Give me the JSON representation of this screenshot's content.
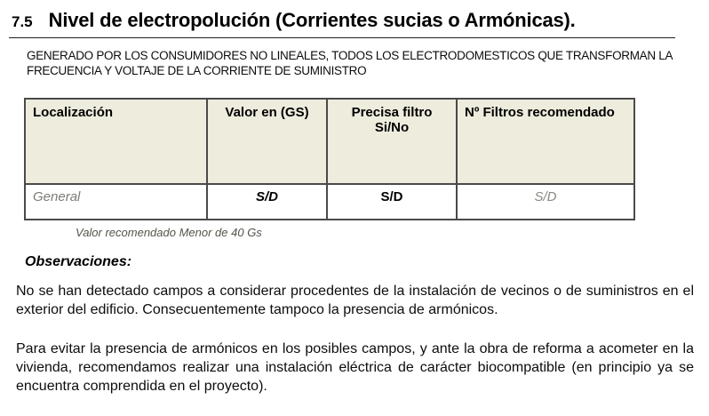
{
  "page": {
    "section_number": "7.5",
    "title": "Nivel de electropolución (Corrientes sucias o Armónicas).",
    "subtitle_line1": "GENERADO POR LOS CONSUMIDORES NO LINEALES, TODOS LOS ELECTRODOMESTICOS QUE TRANSFORMAN LA",
    "subtitle_line2": "FRECUENCIA Y VOLTAJE DE LA CORRIENTE DE SUMINISTRO"
  },
  "table": {
    "headers": {
      "localizacion": "Localización",
      "valor": "Valor en (GS)",
      "precisa_line1": "Precisa filtro",
      "precisa_line2": "Si/No",
      "num_filtros": "Nº Filtros recomendado"
    },
    "row": {
      "localizacion": "General",
      "valor": "S/D",
      "precisa_filtro": "S/D",
      "num_filtros": "S/D"
    },
    "caption": "Valor recomendado Menor de 40 Gs",
    "colors": {
      "header_bg": "#edecdd",
      "highlight_bg": "#fbfbc9"
    }
  },
  "observations": {
    "heading": "Observaciones:",
    "paragraph1": "No se han detectado campos a considerar procedentes de la instalación de vecinos o de suministros en el exterior del edificio. Consecuentemente tampoco la presencia de armónicos.",
    "paragraph2": "Para evitar la presencia de armónicos en los posibles campos, y ante la obra de reforma a acometer en la vivienda, recomendamos realizar una instalación eléctrica de carácter biocompatible (en principio ya se encuentra comprendida en el proyecto)."
  }
}
